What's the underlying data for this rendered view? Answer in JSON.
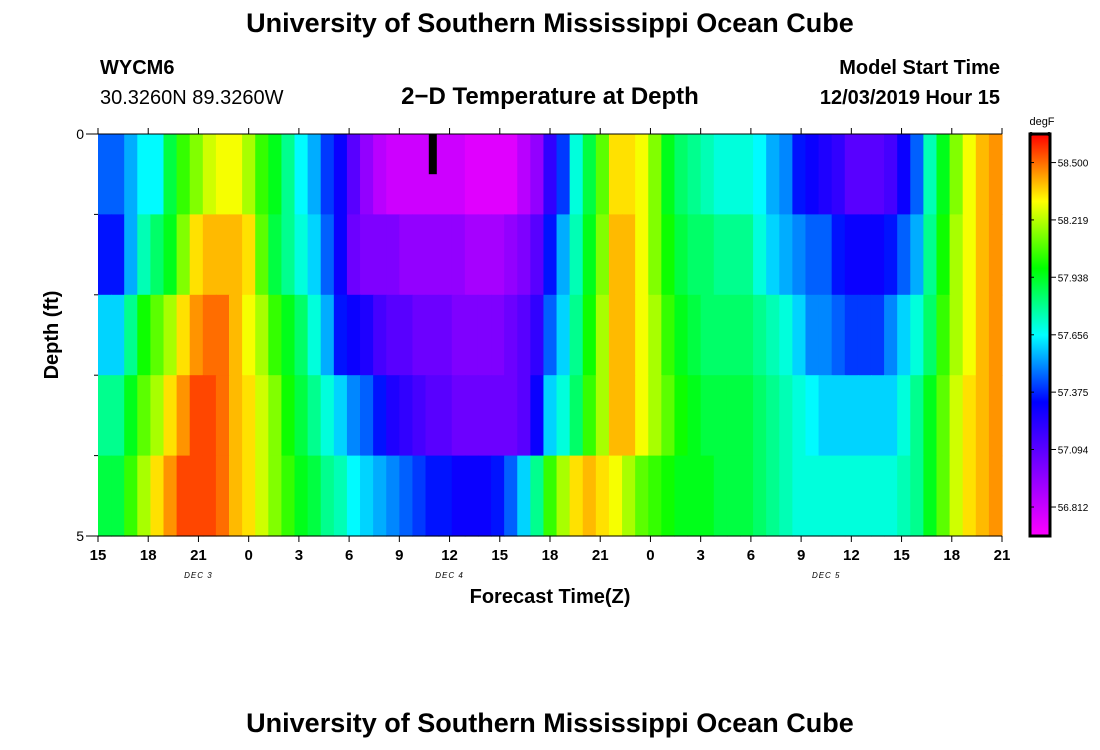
{
  "header": {
    "title": "University of Southern Mississippi Ocean Cube",
    "station_id": "WYCM6",
    "station_coords": "30.3260N 89.3260W",
    "subtitle": "2−D Temperature at Depth",
    "model_start_label": "Model Start Time",
    "model_start_time": "12/03/2019 Hour 15"
  },
  "footer": {
    "title": "University of Southern Mississippi Ocean Cube"
  },
  "chart_data": {
    "type": "heatmap",
    "title": "2−D Temperature at Depth",
    "xlabel": "Forecast Time(Z)",
    "ylabel": "Depth (ft)",
    "x_tick_labels": [
      "15",
      "18",
      "21",
      "0",
      "3",
      "6",
      "9",
      "12",
      "15",
      "18",
      "21",
      "0",
      "3",
      "6",
      "9",
      "12",
      "15",
      "18",
      "21"
    ],
    "date_labels": [
      {
        "label": "DEC 3",
        "at_tick": 2
      },
      {
        "label": "DEC 4",
        "at_tick": 7
      },
      {
        "label": "DEC 5",
        "at_tick": 14.5
      }
    ],
    "y_tick_labels": [
      "0",
      "5"
    ],
    "ylim": [
      0,
      5
    ],
    "depth_levels": 5,
    "hours": 54,
    "colorbar": {
      "unit": "degF",
      "tick_labels": [
        "58.500",
        "58.219",
        "57.938",
        "57.656",
        "57.375",
        "57.094",
        "56.812"
      ],
      "min": 56.67,
      "max": 58.64
    },
    "current_time_marker_hour": 20,
    "temperature_rows": [
      [
        57.45,
        57.45,
        57.55,
        57.65,
        57.65,
        57.9,
        58.05,
        58.15,
        58.25,
        58.3,
        58.3,
        58.2,
        58.05,
        57.95,
        57.8,
        57.65,
        57.55,
        57.4,
        57.3,
        57.1,
        56.95,
        56.85,
        56.8,
        56.8,
        56.8,
        56.8,
        56.8,
        56.8,
        56.75,
        56.75,
        56.75,
        56.75,
        56.85,
        56.95,
        57.2,
        57.4,
        57.7,
        57.9,
        58.1,
        58.35,
        58.35,
        58.3,
        58.15,
        57.95,
        57.85,
        57.8,
        57.75,
        57.7,
        57.7,
        57.7,
        57.65,
        57.55,
        57.5,
        57.35,
        57.3,
        57.25,
        57.2,
        57.1,
        57.1,
        57.1,
        57.15,
        57.3,
        57.45,
        57.75,
        57.95,
        58.15,
        58.3,
        58.4,
        58.45
      ],
      [
        57.35,
        57.35,
        57.55,
        57.75,
        57.85,
        57.95,
        58.15,
        58.35,
        58.4,
        58.4,
        58.4,
        58.35,
        58.1,
        57.9,
        57.8,
        57.7,
        57.6,
        57.45,
        57.3,
        57.05,
        57.0,
        57.0,
        57.0,
        56.95,
        56.95,
        56.95,
        56.95,
        56.95,
        56.9,
        56.9,
        56.9,
        56.95,
        57.0,
        57.1,
        57.35,
        57.55,
        57.75,
        57.95,
        58.15,
        58.4,
        58.4,
        58.3,
        58.15,
        58.0,
        57.9,
        57.85,
        57.85,
        57.8,
        57.8,
        57.8,
        57.7,
        57.6,
        57.55,
        57.5,
        57.45,
        57.45,
        57.35,
        57.3,
        57.3,
        57.3,
        57.35,
        57.45,
        57.55,
        57.8,
        58.0,
        58.2,
        58.3,
        58.4,
        58.45
      ],
      [
        57.6,
        57.6,
        57.8,
        58.0,
        58.1,
        58.2,
        58.35,
        58.45,
        58.5,
        58.5,
        58.4,
        58.3,
        58.2,
        58.05,
        57.95,
        57.85,
        57.7,
        57.55,
        57.35,
        57.3,
        57.25,
        57.15,
        57.1,
        57.1,
        57.05,
        57.05,
        57.05,
        57.0,
        57.0,
        57.0,
        57.0,
        57.05,
        57.1,
        57.2,
        57.45,
        57.6,
        57.8,
        58.0,
        58.2,
        58.4,
        58.4,
        58.3,
        58.2,
        58.05,
        57.95,
        57.9,
        57.85,
        57.85,
        57.85,
        57.85,
        57.8,
        57.75,
        57.7,
        57.6,
        57.5,
        57.5,
        57.45,
        57.4,
        57.4,
        57.4,
        57.5,
        57.6,
        57.7,
        57.85,
        58.05,
        58.2,
        58.3,
        58.4,
        58.45
      ],
      [
        57.8,
        57.8,
        57.95,
        58.1,
        58.2,
        58.35,
        58.45,
        58.55,
        58.55,
        58.5,
        58.4,
        58.35,
        58.25,
        58.15,
        58.0,
        57.9,
        57.8,
        57.7,
        57.6,
        57.5,
        57.45,
        57.35,
        57.25,
        57.2,
        57.15,
        57.1,
        57.1,
        57.05,
        57.05,
        57.05,
        57.05,
        57.05,
        57.1,
        57.3,
        57.6,
        57.7,
        57.85,
        58.05,
        58.2,
        58.4,
        58.4,
        58.3,
        58.2,
        58.1,
        58.0,
        57.95,
        57.9,
        57.9,
        57.9,
        57.9,
        57.85,
        57.8,
        57.75,
        57.7,
        57.65,
        57.6,
        57.6,
        57.6,
        57.6,
        57.6,
        57.6,
        57.7,
        57.8,
        57.95,
        58.1,
        58.25,
        58.35,
        58.4,
        58.45
      ],
      [
        57.9,
        57.9,
        58.05,
        58.2,
        58.35,
        58.45,
        58.55,
        58.55,
        58.55,
        58.5,
        58.4,
        58.35,
        58.25,
        58.15,
        58.05,
        57.95,
        57.9,
        57.8,
        57.75,
        57.65,
        57.6,
        57.55,
        57.5,
        57.45,
        57.4,
        57.35,
        57.35,
        57.3,
        57.3,
        57.3,
        57.35,
        57.45,
        57.6,
        57.8,
        58.05,
        58.2,
        58.35,
        58.4,
        58.35,
        58.3,
        58.2,
        58.1,
        58.05,
        58.0,
        57.95,
        57.95,
        57.95,
        57.9,
        57.9,
        57.9,
        57.85,
        57.8,
        57.75,
        57.7,
        57.7,
        57.7,
        57.7,
        57.7,
        57.7,
        57.7,
        57.7,
        57.75,
        57.8,
        57.95,
        58.1,
        58.25,
        58.35,
        58.4,
        58.45
      ]
    ]
  }
}
